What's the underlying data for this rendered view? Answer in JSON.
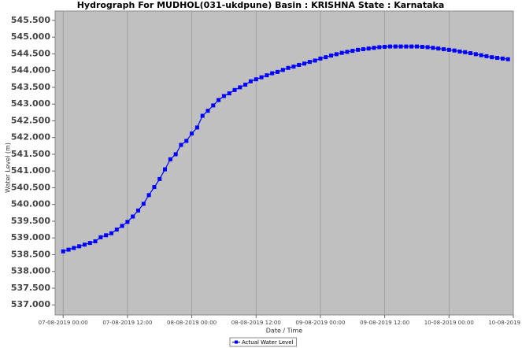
{
  "chart_data": {
    "type": "line",
    "title": "Hydrograph For MUDHOL(031-ukdpune) Basin : KRISHNA State : Karnataka",
    "x_label": "Date / Time",
    "y_label": "Water Level (m)",
    "x": [
      0,
      1,
      2,
      3,
      4,
      5,
      6,
      7,
      8,
      9,
      10,
      11,
      12,
      13,
      14,
      15,
      16,
      17,
      18,
      19,
      20,
      21,
      22,
      23,
      24,
      25,
      26,
      27,
      28,
      29,
      30,
      31,
      32,
      33,
      34,
      35,
      36,
      37,
      38,
      39,
      40,
      41,
      42,
      43,
      44,
      45,
      46,
      47,
      48,
      49,
      50,
      51,
      52,
      53,
      54,
      55,
      56,
      57,
      58,
      59,
      60,
      61,
      62,
      63,
      64,
      65,
      66,
      67,
      68,
      69,
      70,
      71,
      72,
      73,
      74,
      75,
      76,
      77,
      78,
      79,
      80,
      81,
      82,
      83
    ],
    "series": [
      {
        "name": "Actual Water Level",
        "color": "#0000ff",
        "values": [
          538.6,
          538.65,
          538.7,
          538.75,
          538.8,
          538.85,
          538.9,
          539.02,
          539.08,
          539.14,
          539.25,
          539.36,
          539.48,
          539.64,
          539.82,
          540.02,
          540.28,
          540.52,
          540.76,
          541.05,
          541.35,
          541.5,
          541.78,
          541.9,
          542.12,
          542.3,
          542.65,
          542.8,
          542.96,
          543.12,
          543.24,
          543.32,
          543.42,
          543.5,
          543.58,
          543.68,
          543.74,
          543.8,
          543.86,
          543.92,
          543.96,
          544.02,
          544.08,
          544.12,
          544.17,
          544.21,
          544.26,
          544.3,
          544.36,
          544.4,
          544.45,
          544.49,
          544.53,
          544.56,
          544.59,
          544.62,
          544.64,
          544.66,
          544.68,
          544.7,
          544.71,
          544.72,
          544.72,
          544.72,
          544.72,
          544.72,
          544.72,
          544.71,
          544.7,
          544.68,
          544.66,
          544.64,
          544.62,
          544.6,
          544.57,
          544.55,
          544.52,
          544.49,
          544.46,
          544.43,
          544.4,
          544.38,
          544.36,
          544.34
        ]
      }
    ],
    "xlim": [
      -1.5,
      84
    ],
    "xticks": [
      {
        "value": 0,
        "label": "07-08-2019 00:00"
      },
      {
        "value": 12,
        "label": "07-08-2019 12:00"
      },
      {
        "value": 24,
        "label": "08-08-2019 00:00"
      },
      {
        "value": 36,
        "label": "08-08-2019 12:00"
      },
      {
        "value": 48,
        "label": "09-08-2019 00:00"
      },
      {
        "value": 60,
        "label": "09-08-2019 12:00"
      },
      {
        "value": 72,
        "label": "10-08-2019 00:00"
      },
      {
        "value": 84,
        "label": "10-08-2019"
      }
    ],
    "ylim": [
      536.7,
      545.78
    ],
    "yticks": [
      {
        "value": 537,
        "label": "537.000"
      },
      {
        "value": 537.5,
        "label": "537.500"
      },
      {
        "value": 538,
        "label": "538.000"
      },
      {
        "value": 538.5,
        "label": "538.500"
      },
      {
        "value": 539,
        "label": "539.000"
      },
      {
        "value": 539.5,
        "label": "539.500"
      },
      {
        "value": 540,
        "label": "540.000"
      },
      {
        "value": 540.5,
        "label": "540.500"
      },
      {
        "value": 541,
        "label": "541.000"
      },
      {
        "value": 541.5,
        "label": "541.500"
      },
      {
        "value": 542,
        "label": "542.000"
      },
      {
        "value": 542.5,
        "label": "542.500"
      },
      {
        "value": 543,
        "label": "543.000"
      },
      {
        "value": 543.5,
        "label": "543.500"
      },
      {
        "value": 544,
        "label": "544.000"
      },
      {
        "value": 544.5,
        "label": "544.500"
      },
      {
        "value": 545,
        "label": "545.000"
      },
      {
        "value": 545.5,
        "label": "545.500"
      }
    ],
    "grid": true,
    "legend": "bottom"
  }
}
